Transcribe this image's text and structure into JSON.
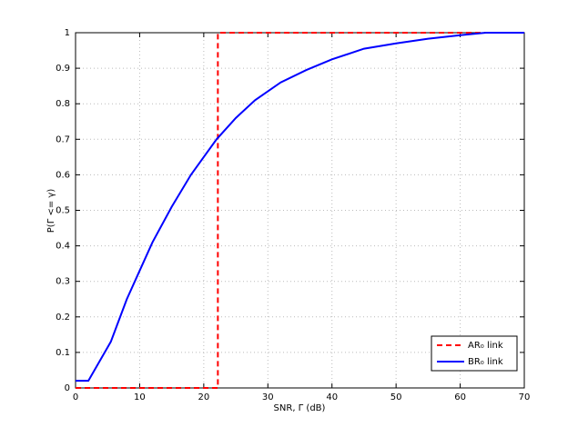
{
  "chart_data": {
    "type": "line",
    "x_label": "SNR, Γ (dB)",
    "y_label": "P(Γ <= γ)",
    "xlim": [
      0,
      70
    ],
    "xticks": [
      0,
      10,
      20,
      30,
      40,
      50,
      60,
      70
    ],
    "ylim": [
      0,
      1
    ],
    "yticks": [
      0,
      0.1,
      0.2,
      0.3,
      0.4,
      0.5,
      0.6,
      0.7,
      0.8,
      0.9,
      1
    ],
    "grid": true,
    "legend": "lower right",
    "series": [
      {
        "name": "AR₀ link",
        "color": "#ff0000",
        "dash": true,
        "x": [
          0,
          22.2,
          22.2,
          70
        ],
        "values": [
          0,
          0,
          1,
          1
        ]
      },
      {
        "name": "BR₀ link",
        "color": "#0000ff",
        "dash": false,
        "x": [
          0,
          2,
          5.5,
          8,
          10,
          12,
          15,
          18,
          20,
          22,
          25,
          28,
          32,
          36,
          40,
          45,
          50,
          55,
          60,
          64,
          70
        ],
        "values": [
          0.02,
          0.02,
          0.13,
          0.25,
          0.33,
          0.41,
          0.51,
          0.6,
          0.65,
          0.7,
          0.76,
          0.81,
          0.86,
          0.895,
          0.925,
          0.955,
          0.97,
          0.983,
          0.993,
          1,
          1
        ]
      }
    ]
  }
}
